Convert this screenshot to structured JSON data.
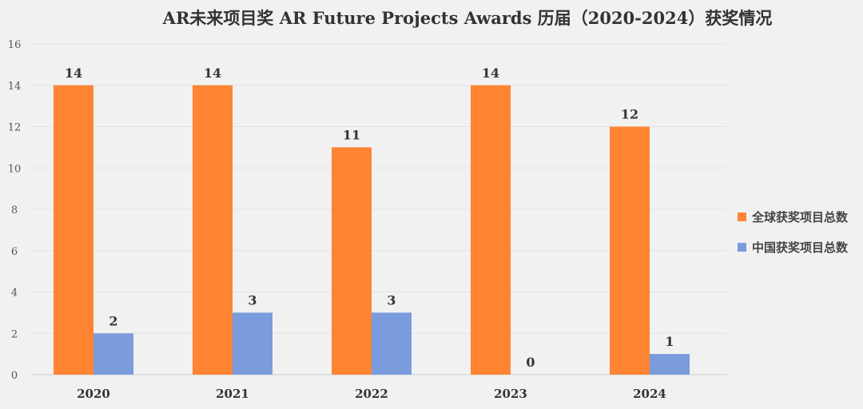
{
  "chart_data": {
    "type": "bar",
    "title": "AR未来项目奖 AR Future Projects Awards 历届（2020-2024）获奖情况",
    "categories": [
      "2020",
      "2021",
      "2022",
      "2023",
      "2024"
    ],
    "series": [
      {
        "name": "全球获奖项目总数",
        "values": [
          14,
          14,
          11,
          14,
          12
        ],
        "color": "#ff8533"
      },
      {
        "name": "中国获奖项目总数",
        "values": [
          2,
          3,
          3,
          0,
          1
        ],
        "color": "#7a9cdc"
      }
    ],
    "ylim": [
      0,
      16
    ],
    "yticks": [
      0,
      2,
      4,
      6,
      8,
      10,
      12,
      14,
      16
    ],
    "grid": true,
    "legend": "right",
    "data_labels": true
  }
}
